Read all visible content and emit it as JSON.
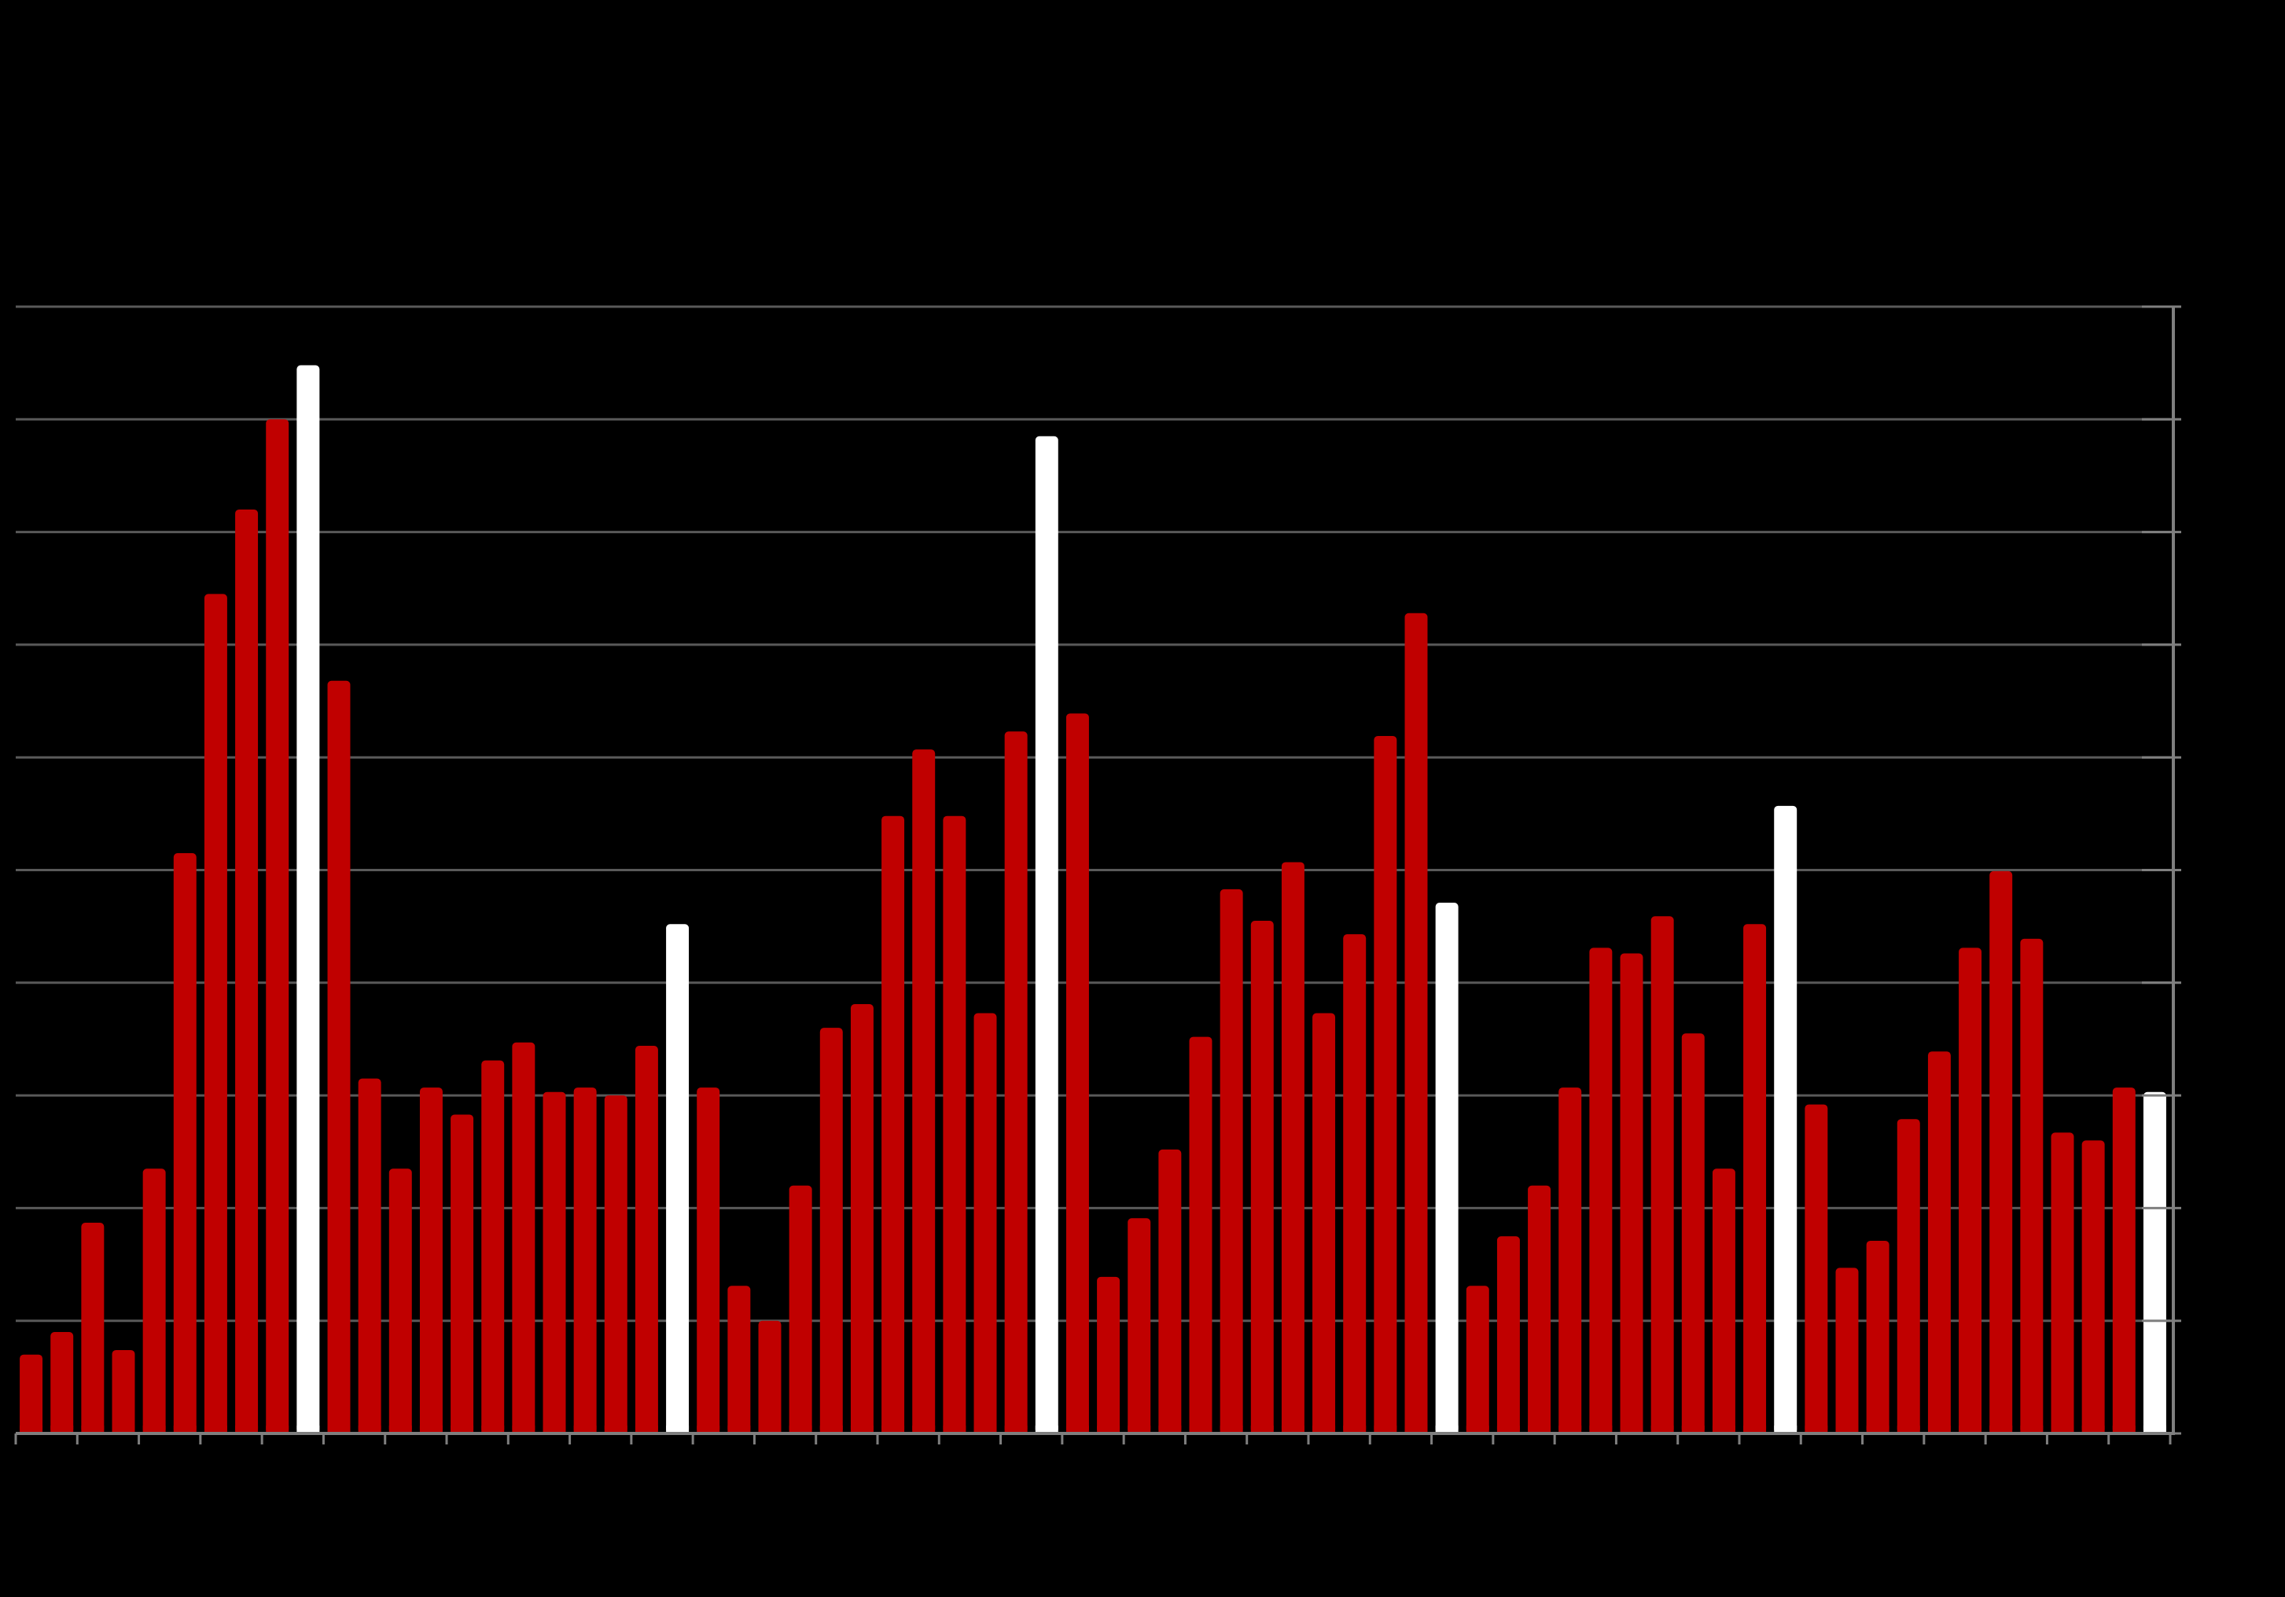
{
  "chart_data": {
    "type": "bar",
    "title": "",
    "xlabel": "",
    "ylabel": "",
    "ylim": [
      0,
      100
    ],
    "grid": true,
    "legend": "none",
    "colors": {
      "background": "#000000",
      "bar": "#c00000",
      "highlight": "#ffffff",
      "grid": "#595959",
      "axis": "#7f7f7f"
    },
    "values": [
      7,
      9,
      18.7,
      7.4,
      23.5,
      51.5,
      74.5,
      82,
      90,
      94.8,
      66.8,
      31.5,
      23.5,
      30.7,
      28.3,
      33.1,
      34.7,
      30.3,
      30.7,
      30,
      34.4,
      45.2,
      30.7,
      13.1,
      10,
      22,
      36,
      38.1,
      54.8,
      60.7,
      54.8,
      37.3,
      62.3,
      88.5,
      63.9,
      13.9,
      19.1,
      25.2,
      35.2,
      48.3,
      45.5,
      50.7,
      37.3,
      44.3,
      61.9,
      72.8,
      47.1,
      13.1,
      17.5,
      22,
      30.7,
      43.1,
      42.6,
      45.9,
      35.5,
      23.5,
      45.2,
      55.7,
      29.2,
      14.7,
      17.1,
      27.9,
      33.9,
      43.1,
      49.9,
      43.9,
      26.7,
      26,
      30.7,
      30.3
    ],
    "highlight_indices": [
      9,
      21,
      33,
      46,
      57,
      69
    ]
  }
}
